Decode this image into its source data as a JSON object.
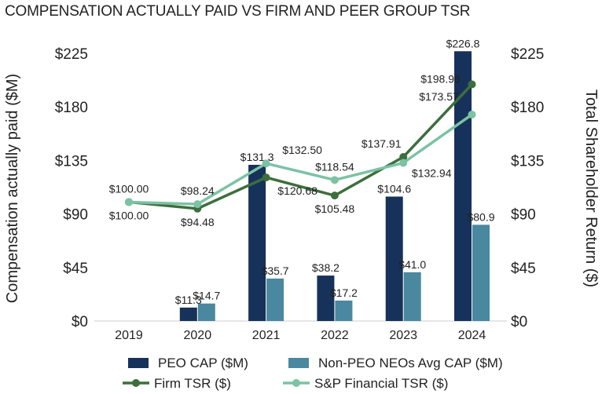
{
  "chart_data": {
    "type": "bar+line",
    "title": "COMPENSATION ACTUALLY PAID VS FIRM AND PEER GROUP TSR",
    "ylabel_left": "Compensation actually paid ($M)",
    "ylabel_right": "Total Shareholder Return ($)",
    "ylim": [
      0,
      225
    ],
    "yticks": [
      0,
      45,
      90,
      135,
      180,
      225
    ],
    "ytick_labels": [
      "$0",
      "$45",
      "$90",
      "$135",
      "$180",
      "$225"
    ],
    "categories": [
      "2019",
      "2020",
      "2021",
      "2022",
      "2023",
      "2024"
    ],
    "grid": false,
    "legend_position": "bottom",
    "series": [
      {
        "name": "PEO CAP ($M)",
        "type": "bar",
        "color": "#17325a",
        "values": [
          null,
          11.3,
          131.3,
          38.2,
          104.6,
          226.8
        ],
        "labels": [
          "",
          "$11.3",
          "$131.3",
          "$38.2",
          "$104.6",
          "$226.8"
        ]
      },
      {
        "name": "Non-PEO NEOs Avg CAP ($M)",
        "type": "bar",
        "color": "#4a88a0",
        "values": [
          null,
          14.7,
          35.7,
          17.2,
          41.0,
          80.9
        ],
        "labels": [
          "",
          "$14.7",
          "$35.7",
          "$17.2",
          "$41.0",
          "$80.9"
        ]
      },
      {
        "name": "Firm TSR ($)",
        "type": "line",
        "color": "#3d6e3d",
        "values": [
          100.0,
          94.48,
          120.68,
          105.48,
          137.91,
          198.96
        ],
        "labels": [
          "$100.00",
          "$94.48",
          "$120.68",
          "$105.48",
          "$137.91",
          "$198.96"
        ]
      },
      {
        "name": "S&P Financial TSR ($)",
        "type": "line",
        "color": "#7cc2a4",
        "values": [
          100.0,
          98.24,
          132.5,
          118.54,
          132.94,
          173.57
        ],
        "labels": [
          "$100.00",
          "$98.24",
          "$132.50",
          "$118.54",
          "$132.94",
          "$173.57"
        ]
      }
    ]
  }
}
